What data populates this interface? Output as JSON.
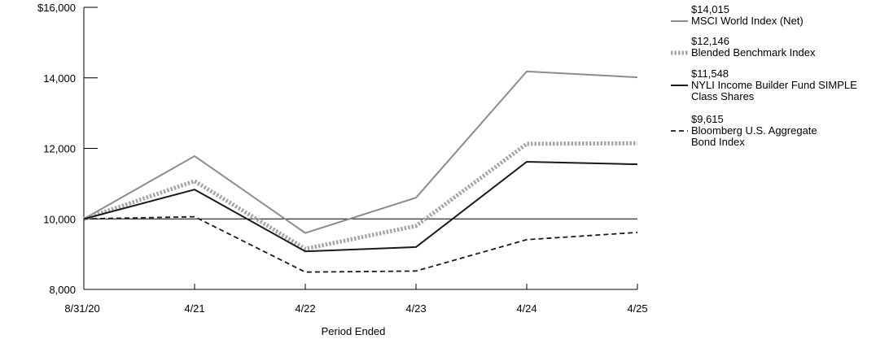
{
  "chart_data": {
    "type": "line",
    "title": "",
    "xlabel": "Period Ended",
    "ylabel": "",
    "categories": [
      "8/31/20",
      "4/21",
      "4/22",
      "4/23",
      "4/24",
      "4/25"
    ],
    "y_ticks": [
      "$16,000",
      "14,000",
      "12,000",
      "10,000",
      "8,000"
    ],
    "y_tick_values": [
      16000,
      14000,
      12000,
      10000,
      8000
    ],
    "ylim": [
      8000,
      16000
    ],
    "reference_line": 10000,
    "legend_position": "right",
    "series": [
      {
        "name": "MSCI World Index (Net)",
        "end_value_label": "$14,015",
        "style": "solid-gray",
        "color": "#8c8c8c",
        "values": [
          10000,
          11780,
          9600,
          10600,
          14180,
          14015
        ]
      },
      {
        "name": "Blended Benchmark Index",
        "end_value_label": "$12,146",
        "style": "dotted-gray",
        "color": "#a6a6a6",
        "values": [
          10000,
          11070,
          9150,
          9800,
          12130,
          12146
        ]
      },
      {
        "name": "NYLI Income Builder Fund SIMPLE Class Shares",
        "name_lines": [
          "NYLI Income Builder Fund SIMPLE",
          "Class Shares"
        ],
        "end_value_label": "$11,548",
        "style": "solid-black",
        "color": "#1a1a1a",
        "values": [
          10000,
          10830,
          9080,
          9200,
          11620,
          11548
        ]
      },
      {
        "name": "Bloomberg  U.S. Aggregate Bond Index",
        "name_lines": [
          "Bloomberg  U.S. Aggregate",
          "Bond Index"
        ],
        "end_value_label": "$9,615",
        "style": "dashed-black",
        "color": "#1a1a1a",
        "values": [
          10000,
          10060,
          8490,
          8520,
          9410,
          9615
        ]
      }
    ]
  }
}
